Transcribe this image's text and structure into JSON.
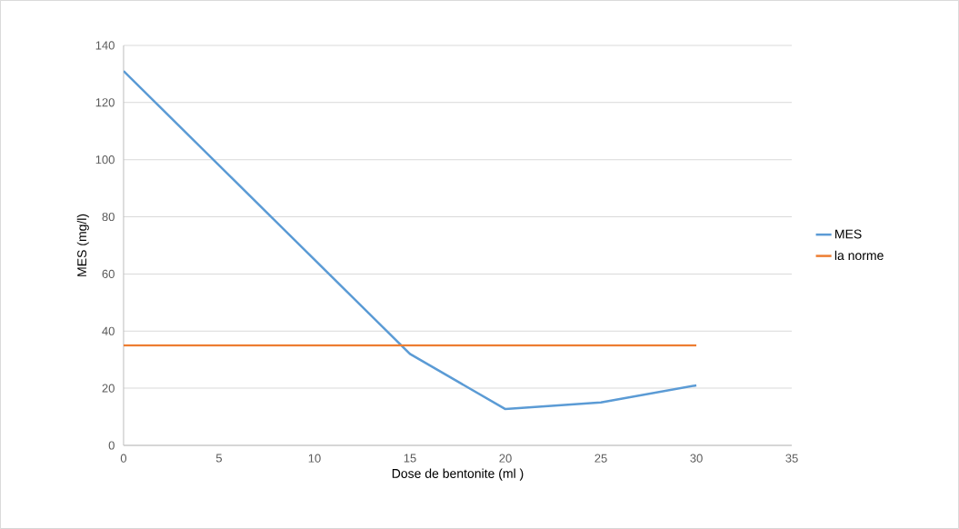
{
  "chart_data": {
    "type": "line",
    "xlabel": "Dose de bentonite (ml )",
    "ylabel": "MES (mg/l)",
    "xlim": [
      0,
      35
    ],
    "xticks": [
      0,
      5,
      10,
      15,
      20,
      25,
      30,
      35
    ],
    "ylim": [
      0,
      140
    ],
    "yticks": [
      0,
      20,
      40,
      60,
      80,
      100,
      120,
      140
    ],
    "grid": "y",
    "legend": "right",
    "marker": "none",
    "line_style": "solid",
    "series": [
      {
        "name": "MES",
        "color": "#5b9bd5",
        "x": [
          0,
          15,
          20,
          25,
          30
        ],
        "values": [
          131,
          32,
          12.7,
          15,
          21
        ]
      },
      {
        "name": "la norme",
        "color": "#ed7d31",
        "x": [
          0,
          5,
          10,
          15,
          20,
          25,
          30
        ],
        "values": [
          35,
          35,
          35,
          35,
          35,
          35,
          35
        ]
      }
    ]
  }
}
